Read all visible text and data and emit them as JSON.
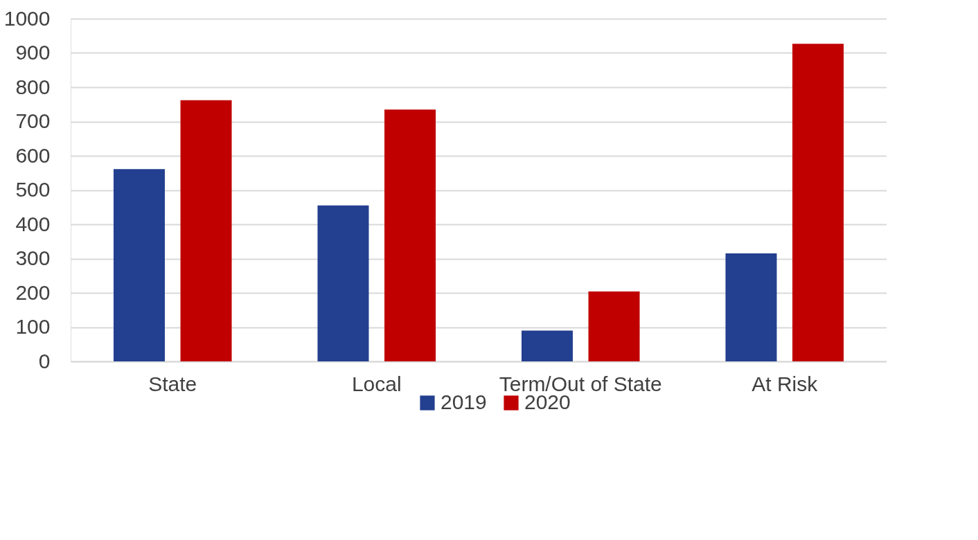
{
  "chart_data": {
    "type": "bar",
    "categories": [
      "State",
      "Local",
      "Term/Out of State",
      "At Risk"
    ],
    "series": [
      {
        "name": "2019",
        "color": "#233f8f",
        "values": [
          561,
          455,
          90,
          315
        ]
      },
      {
        "name": "2020",
        "color": "#c00000",
        "values": [
          762,
          735,
          204,
          927
        ]
      }
    ],
    "ylim": [
      0,
      1000
    ],
    "yticks": [
      0,
      100,
      200,
      300,
      400,
      500,
      600,
      700,
      800,
      900,
      1000
    ],
    "grid": "y",
    "legend": "bottom"
  }
}
